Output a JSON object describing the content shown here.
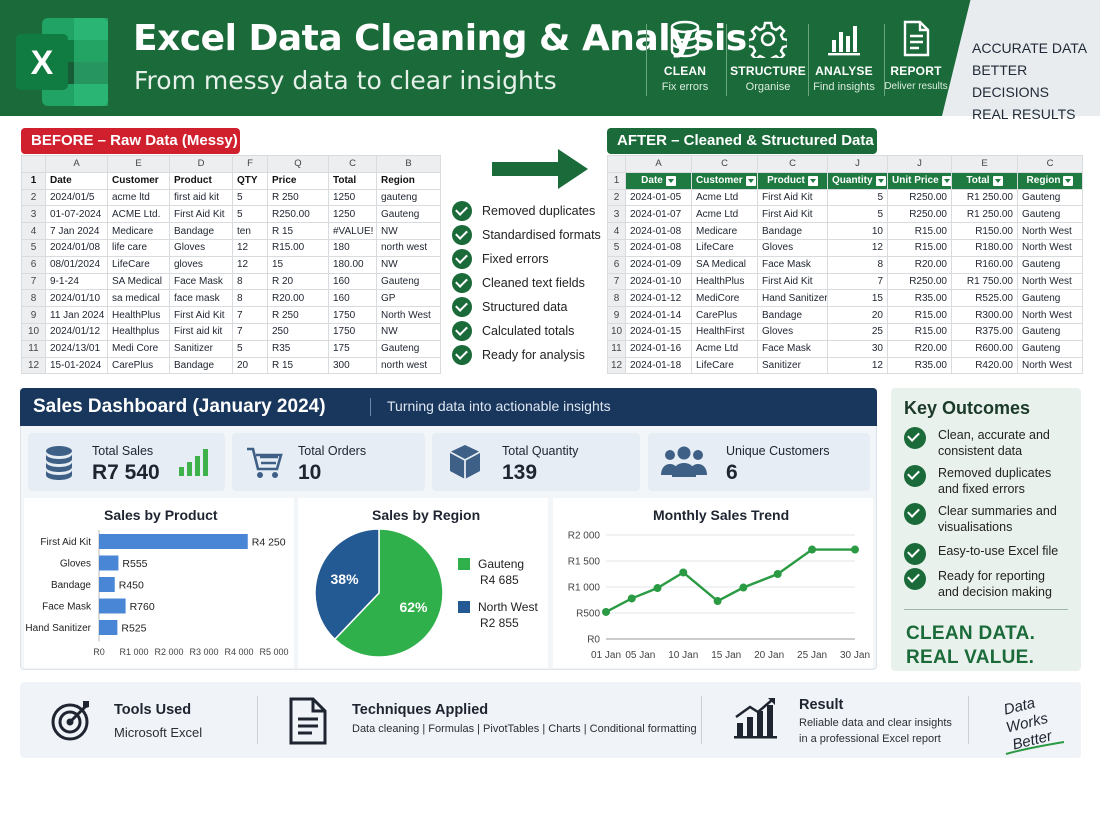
{
  "header": {
    "title": "Excel Data Cleaning & Analysis",
    "subtitle": "From messy data to clear insights",
    "logo_letter": "X",
    "steps": [
      {
        "label": "CLEAN",
        "sub": "Fix errors",
        "icon": "database-icon"
      },
      {
        "label": "STRUCTURE",
        "sub": "Organise",
        "icon": "gear-icon"
      },
      {
        "label": "ANALYSE",
        "sub": "Find insights",
        "icon": "bar-chart-icon"
      },
      {
        "label": "REPORT",
        "sub": "Deliver results",
        "icon": "document-icon"
      }
    ],
    "slogans": [
      "ACCURATE DATA",
      "BETTER DECISIONS",
      "REAL RESULTS"
    ],
    "colors": {
      "green": "#1b6b3a",
      "red": "#d0202e",
      "navy": "#19375c"
    }
  },
  "before": {
    "tag": "BEFORE – Raw Data (Messy)",
    "col_letters": [
      "A",
      "E",
      "D",
      "F",
      "Q",
      "C",
      "B"
    ],
    "headers": [
      "Date",
      "Customer",
      "Product",
      "QTY",
      "Price",
      "Total",
      "Region"
    ],
    "rows": [
      [
        "2024/01/5",
        "acme ltd",
        "first aid kit",
        "5",
        "R 250",
        "1250",
        "gauteng"
      ],
      [
        "01-07-2024",
        "ACME Ltd.",
        "First Aid Kit",
        "5",
        "R250.00",
        "1250",
        "Gauteng"
      ],
      [
        "7 Jan 2024",
        "Medicare",
        "Bandage",
        "ten",
        "R 15",
        "#VALUE!",
        "NW"
      ],
      [
        "2024/01/08",
        "life care",
        "Gloves",
        "12",
        "R15.00",
        "180",
        "north west"
      ],
      [
        "08/01/2024",
        "LifeCare",
        "gloves",
        "12",
        "15",
        "180.00",
        "NW"
      ],
      [
        "9-1-24",
        "SA Medical",
        "Face Mask",
        "8",
        "R 20",
        "160",
        "Gauteng"
      ],
      [
        "2024/01/10",
        "sa medical",
        "face mask",
        "8",
        "R20.00",
        "160",
        "GP"
      ],
      [
        "11 Jan 2024",
        "HealthPlus",
        "First Aid Kit",
        "7",
        "R 250",
        "1750",
        "North West"
      ],
      [
        "2024/01/12",
        "Healthplus",
        "First aid kit",
        "7",
        "250",
        "1750",
        "NW"
      ],
      [
        "2024/13/01",
        "Medi Core",
        "Sanitizer",
        "5",
        "R35",
        "175",
        "Gauteng"
      ],
      [
        "15-01-2024",
        "CarePlus",
        "Bandage",
        "20",
        "R 15",
        "300",
        "north west"
      ]
    ]
  },
  "checklist": [
    "Removed duplicates",
    "Standardised formats",
    "Fixed errors",
    "Cleaned text fields",
    "Structured data",
    "Calculated totals",
    "Ready for analysis"
  ],
  "after": {
    "tag": "AFTER – Cleaned & Structured Data",
    "col_letters": [
      "A",
      "C",
      "C",
      "J",
      "J",
      "E",
      "C"
    ],
    "headers": [
      "Date",
      "Customer",
      "Product",
      "Quantity",
      "Unit Price",
      "Total",
      "Region"
    ],
    "rows": [
      [
        "2024-01-05",
        "Acme Ltd",
        "First Aid Kit",
        "5",
        "R250.00",
        "R1 250.00",
        "Gauteng"
      ],
      [
        "2024-01-07",
        "Acme Ltd",
        "First Aid Kit",
        "5",
        "R250.00",
        "R1 250.00",
        "Gauteng"
      ],
      [
        "2024-01-08",
        "Medicare",
        "Bandage",
        "10",
        "R15.00",
        "R150.00",
        "North West"
      ],
      [
        "2024-01-08",
        "LifeCare",
        "Gloves",
        "12",
        "R15.00",
        "R180.00",
        "North West"
      ],
      [
        "2024-01-09",
        "SA Medical",
        "Face Mask",
        "8",
        "R20.00",
        "R160.00",
        "Gauteng"
      ],
      [
        "2024-01-10",
        "HealthPlus",
        "First Aid Kit",
        "7",
        "R250.00",
        "R1 750.00",
        "North West"
      ],
      [
        "2024-01-12",
        "MediCore",
        "Hand Sanitizer",
        "15",
        "R35.00",
        "R525.00",
        "Gauteng"
      ],
      [
        "2024-01-14",
        "CarePlus",
        "Bandage",
        "20",
        "R15.00",
        "R300.00",
        "North West"
      ],
      [
        "2024-01-15",
        "HealthFirst",
        "Gloves",
        "25",
        "R15.00",
        "R375.00",
        "Gauteng"
      ],
      [
        "2024-01-16",
        "Acme Ltd",
        "Face Mask",
        "30",
        "R20.00",
        "R600.00",
        "Gauteng"
      ],
      [
        "2024-01-18",
        "LifeCare",
        "Sanitizer",
        "12",
        "R35.00",
        "R420.00",
        "North West"
      ]
    ]
  },
  "dashboard": {
    "title": "Sales  Dashboard (January 2024)",
    "subtitle": "Turning data into actionable insights",
    "kpis": [
      {
        "label": "Total Sales",
        "value": "R7 540",
        "icon": "coins-icon"
      },
      {
        "label": "Total Orders",
        "value": "10",
        "icon": "cart-icon"
      },
      {
        "label": "Total Quantity",
        "value": "139",
        "icon": "box-icon"
      },
      {
        "label": "Unique Customers",
        "value": "6",
        "icon": "users-icon"
      }
    ]
  },
  "chart_data": [
    {
      "type": "bar",
      "orientation": "horizontal",
      "title": "Sales by Product",
      "categories": [
        "First Aid Kit",
        "Gloves",
        "Bandage",
        "Face Mask",
        "Hand Sanitizer"
      ],
      "values": [
        4250,
        555,
        450,
        760,
        525
      ],
      "value_labels": [
        "R4 250",
        "R555",
        "R450",
        "R760",
        "R525"
      ],
      "xlim": [
        0,
        5000
      ],
      "x_ticks": [
        "R0",
        "R1 000",
        "R2 000",
        "R3 000",
        "R4 000",
        "R5 000"
      ],
      "color": "#4a86d6"
    },
    {
      "type": "pie",
      "title": "Sales by Region",
      "slices": [
        {
          "name": "Gauteng",
          "value": 4685,
          "label": "R4 685",
          "percent": "62%",
          "color": "#2fb04a"
        },
        {
          "name": "North West",
          "value": 2855,
          "label": "R2 855",
          "percent": "38%",
          "color": "#245a93"
        }
      ],
      "legend": "right"
    },
    {
      "type": "line",
      "title": "Monthly Sales Trend",
      "x_ticks": [
        "01 Jan",
        "05 Jan",
        "10 Jan",
        "15 Jan",
        "20 Jan",
        "25 Jan",
        "30 Jan"
      ],
      "y_ticks": [
        "R0",
        "R500",
        "R1 000",
        "R1 500",
        "R2 000"
      ],
      "ylim": [
        0,
        2000
      ],
      "x": [
        1,
        4,
        7,
        10,
        14,
        17,
        21,
        25,
        30
      ],
      "values": [
        520,
        780,
        980,
        1280,
        730,
        990,
        1250,
        1720,
        1720
      ],
      "grid": true,
      "color": "#2a9a43"
    }
  ],
  "outcomes": {
    "title": "Key Outcomes",
    "items": [
      [
        "Clean, accurate and",
        "consistent data"
      ],
      [
        "Removed duplicates",
        "and fixed errors"
      ],
      [
        "Clear summaries and",
        "visualisations"
      ],
      [
        "Easy-to-use Excel file"
      ],
      [
        "Ready for reporting",
        "and decision making"
      ]
    ],
    "slogan": [
      "CLEAN DATA.",
      "REAL VALUE."
    ]
  },
  "footer": {
    "tools_title": "Tools Used",
    "tools_value": "Microsoft Excel",
    "tech_title": "Techniques Applied",
    "tech_value": "Data cleaning | Formulas | PivotTables | Charts | Conditional formatting",
    "result_title": "Result",
    "result_lines": [
      "Reliable data and clear insights",
      "in a professional Excel report"
    ],
    "signature_lines": [
      "Data",
      "Works",
      "Better"
    ]
  }
}
